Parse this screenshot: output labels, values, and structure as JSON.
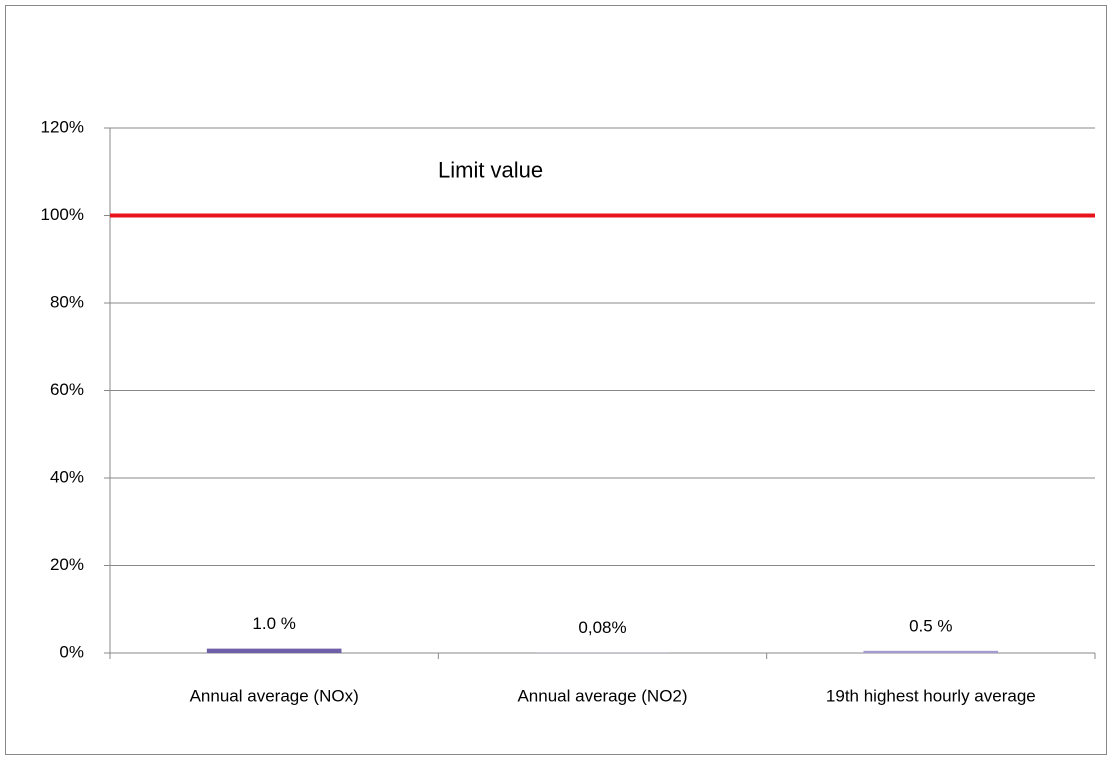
{
  "chart_data": {
    "type": "bar",
    "categories": [
      "Annual average (NOx)",
      "Annual average (NO2)",
      "19th highest hourly average"
    ],
    "values": [
      1.0,
      0.08,
      0.5
    ],
    "value_labels": [
      "1.0 %",
      "0,08%",
      "0.5 %"
    ],
    "colors": [
      "#6f5fa8",
      "#9c93c9",
      "#a49bd0"
    ],
    "ylim": [
      0,
      120
    ],
    "yticks": [
      {
        "value": 0,
        "label": "0%"
      },
      {
        "value": 20,
        "label": "20%"
      },
      {
        "value": 40,
        "label": "40%"
      },
      {
        "value": 60,
        "label": "60%"
      },
      {
        "value": 80,
        "label": "80%"
      },
      {
        "value": 100,
        "label": "100%"
      },
      {
        "value": 120,
        "label": "120%"
      }
    ],
    "grid": true,
    "limit": {
      "value": 100,
      "label": "Limit value",
      "color": "#e8141c"
    }
  }
}
